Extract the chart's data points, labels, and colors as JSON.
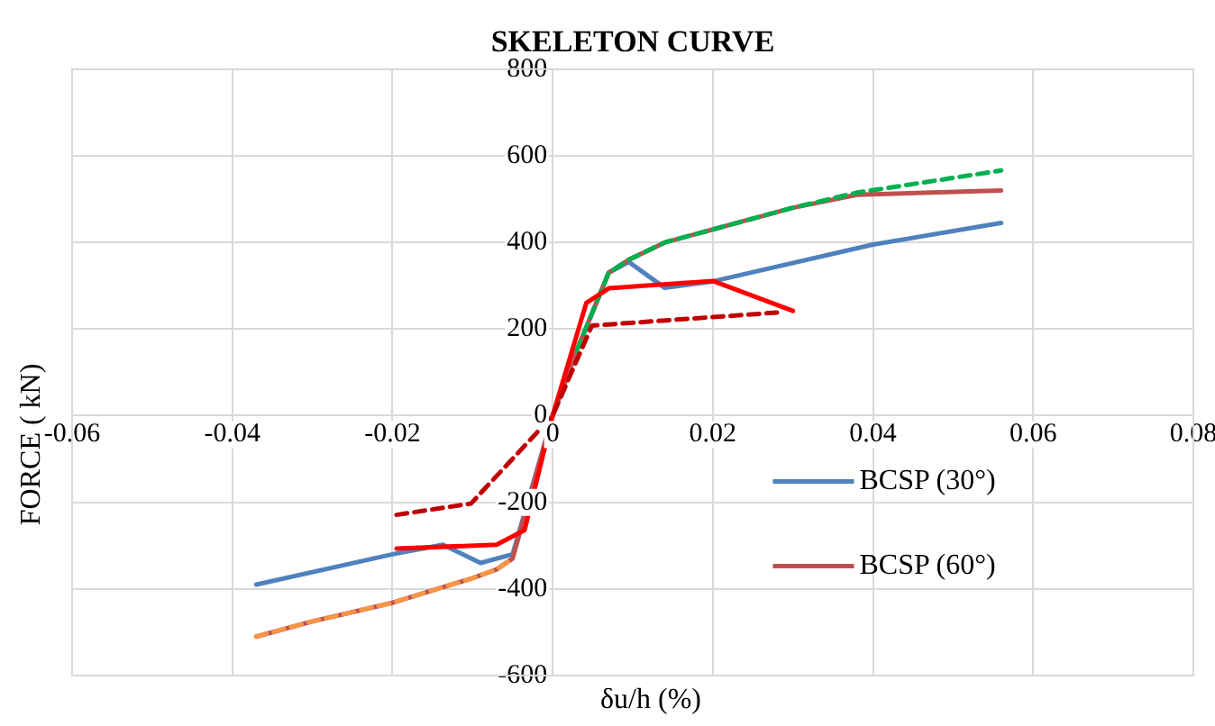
{
  "chart_data": {
    "type": "line",
    "title": "SKELETON CURVE",
    "xlabel": "δu/h (%)",
    "ylabel": "FORCE ( kN)",
    "xlim": [
      -0.06,
      0.08
    ],
    "xticks": [
      -0.06,
      -0.04,
      -0.02,
      0,
      0.02,
      0.04,
      0.06,
      0.08
    ],
    "ylim": [
      -600,
      800
    ],
    "yticks": [
      -600,
      -400,
      -200,
      0,
      200,
      400,
      600,
      800
    ],
    "grid": true,
    "legend": "bottom right",
    "marker": "none",
    "series": [
      {
        "name": "BCSP (30°)",
        "color": "#4f81bd",
        "line_style": "solid",
        "x": [
          -0.037,
          -0.02,
          -0.0137,
          -0.009,
          -0.005,
          0,
          0.003,
          0.007,
          0.0095,
          0.014,
          0.02,
          0.04,
          0.056
        ],
        "values": [
          -390,
          -320,
          -298,
          -340,
          -320,
          0,
          150,
          330,
          355,
          295,
          310,
          395,
          445
        ]
      },
      {
        "name": "BCSP (60°)",
        "color": "#c0504d",
        "line_style": "solid",
        "x": [
          -0.037,
          -0.03,
          -0.02,
          -0.01,
          -0.007,
          -0.005,
          0,
          0.003,
          0.007,
          0.0095,
          0.014,
          0.02,
          0.03,
          0.038,
          0.056
        ],
        "values": [
          -510,
          -475,
          -432,
          -375,
          -355,
          -330,
          0,
          150,
          330,
          360,
          400,
          430,
          480,
          510,
          520
        ]
      },
      {
        "color": "#00b050",
        "line_style": "dashed",
        "x": [
          0.003,
          0.007,
          0.0095,
          0.014,
          0.02,
          0.03,
          0.038,
          0.056
        ],
        "values": [
          150,
          330,
          360,
          400,
          430,
          480,
          515,
          566
        ]
      },
      {
        "color": "#f79646",
        "line_style": "dashed",
        "x": [
          -0.037,
          -0.03,
          -0.02,
          -0.01,
          -0.007,
          -0.005
        ],
        "values": [
          -510,
          -475,
          -432,
          -375,
          -355,
          -330
        ]
      },
      {
        "color": "#ff0000",
        "line_style": "solid",
        "x": [
          -0.0195,
          -0.007,
          -0.0035,
          0,
          0.0042,
          0.007,
          0.02,
          0.03
        ],
        "values": [
          -307,
          -298,
          -264,
          0,
          260,
          294,
          311,
          242
        ]
      },
      {
        "color": "#c00000",
        "line_style": "dashed",
        "x": [
          -0.0195,
          -0.0102,
          0,
          0.0049,
          0.028
        ],
        "values": [
          -229,
          -203,
          0,
          208,
          238
        ]
      }
    ]
  }
}
